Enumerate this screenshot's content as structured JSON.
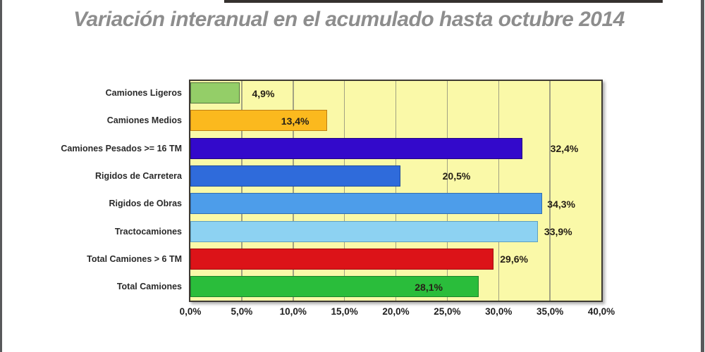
{
  "page": {
    "title": "Variación interanual en el acumulado hasta octubre 2014",
    "accent_bar_color": "#35312e",
    "edge_line_color": "#58595b"
  },
  "chart_data": {
    "type": "bar",
    "orientation": "horizontal",
    "title": "Variación interanual en el acumulado hasta octubre 2014",
    "categories": [
      "Camiones Ligeros",
      "Camiones Medios",
      "Camiones Pesados >= 16 TM",
      "Rigidos de Carretera",
      "Rigidos de Obras",
      "Tractocamiones",
      "Total Camiones  > 6 TM",
      "Total Camiones"
    ],
    "values": [
      4.9,
      13.4,
      32.4,
      20.5,
      34.3,
      33.9,
      29.6,
      28.1
    ],
    "value_labels": [
      "4,9%",
      "13,4%",
      "32,4%",
      "20,5%",
      "34,3%",
      "33,9%",
      "29,6%",
      "28,1%"
    ],
    "bar_colors": [
      "#94ce68",
      "#fbb91e",
      "#3309cb",
      "#2f6bdb",
      "#4d9dea",
      "#8dd2f2",
      "#dc1318",
      "#2abd3b"
    ],
    "bar_border_colors": [
      "#50743e",
      "#bf7f14",
      "#22067e",
      "#1f4b9e",
      "#336fb0",
      "#5e9fc0",
      "#9e0d10",
      "#1c8429"
    ],
    "xlim": [
      0,
      40
    ],
    "x_tick_values": [
      0,
      5,
      10,
      15,
      20,
      25,
      30,
      35,
      40
    ],
    "x_tick_labels": [
      "0,0%",
      "5,0%",
      "10,0%",
      "15,0%",
      "20,0%",
      "25,0%",
      "30,0%",
      "35,0%",
      "40,0%"
    ],
    "value_label_centers_axis_units": [
      7.1,
      10.2,
      36.4,
      25.9,
      36.1,
      35.8,
      31.5,
      23.2
    ],
    "plot_background": "#faf9a8",
    "gridline_color": "#a2a283",
    "grid": true,
    "legend": "none"
  }
}
